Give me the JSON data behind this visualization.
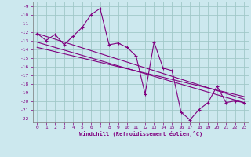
{
  "xlabel": "Windchill (Refroidissement éolien,°C)",
  "bg_color": "#cce8ee",
  "grid_color": "#a0c8c8",
  "line_color": "#800080",
  "xlim": [
    -0.5,
    23.5
  ],
  "ylim": [
    -22.5,
    -8.5
  ],
  "xticks": [
    0,
    1,
    2,
    3,
    4,
    5,
    6,
    7,
    8,
    9,
    10,
    11,
    12,
    13,
    14,
    15,
    16,
    17,
    18,
    19,
    20,
    21,
    22,
    23
  ],
  "yticks": [
    -9,
    -10,
    -11,
    -12,
    -13,
    -14,
    -15,
    -16,
    -17,
    -18,
    -19,
    -20,
    -21,
    -22
  ],
  "data_x": [
    0,
    1,
    2,
    3,
    4,
    5,
    6,
    7,
    8,
    9,
    10,
    11,
    12,
    13,
    14,
    15,
    16,
    17,
    18,
    19,
    20,
    21,
    22,
    23
  ],
  "data_y": [
    -12.2,
    -13.0,
    -12.3,
    -13.5,
    -12.5,
    -11.5,
    -10.0,
    -9.3,
    -13.5,
    -13.3,
    -13.8,
    -14.8,
    -19.2,
    -13.2,
    -16.2,
    -16.5,
    -21.3,
    -22.2,
    -21.0,
    -20.2,
    -18.3,
    -20.2,
    -20.0,
    -20.2
  ],
  "reg_lines": [
    [
      -12.2,
      -19.8
    ],
    [
      -13.2,
      -20.2
    ],
    [
      -13.8,
      -19.5
    ]
  ]
}
